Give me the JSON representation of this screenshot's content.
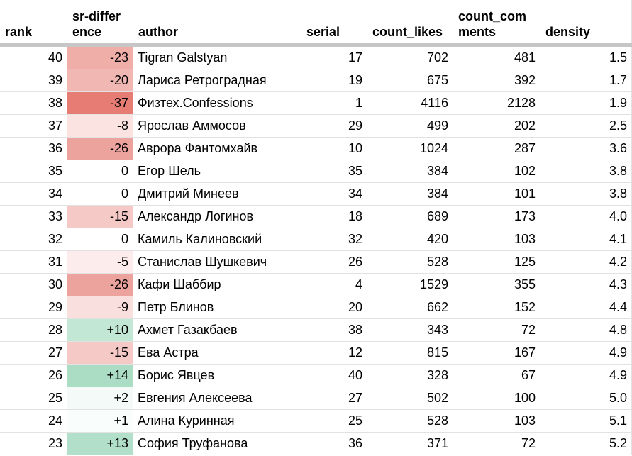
{
  "headers": [
    "rank",
    "sr-difference",
    "author",
    "serial",
    "count_likes",
    "count_comments",
    "density"
  ],
  "header_lines": {
    "rank": [
      "rank"
    ],
    "sr-difference": [
      "sr-differ",
      "ence"
    ],
    "author": [
      "author"
    ],
    "serial": [
      "serial"
    ],
    "count_likes": [
      "count_likes"
    ],
    "count_comments": [
      "count_com",
      "ments"
    ],
    "density": [
      "density"
    ]
  },
  "colors": {
    "negative_strong": "#e67c73",
    "positive_strong": "#57bb8a",
    "neutral": "#ffffff",
    "grid": "#e2e2e2",
    "freeze_bar": "#c6c6c6"
  },
  "rows": [
    {
      "rank": "40",
      "sr_difference": "-23",
      "sr_value": -23,
      "author": "Tigran Galstyan",
      "serial": "17",
      "count_likes": "702",
      "count_comments": "481",
      "density": "1.5"
    },
    {
      "rank": "39",
      "sr_difference": "-20",
      "sr_value": -20,
      "author": "Лариса Ретроградная",
      "serial": "19",
      "count_likes": "675",
      "count_comments": "392",
      "density": "1.7"
    },
    {
      "rank": "38",
      "sr_difference": "-37",
      "sr_value": -37,
      "author": "Физтех.Confessions",
      "serial": "1",
      "count_likes": "4116",
      "count_comments": "2128",
      "density": "1.9"
    },
    {
      "rank": "37",
      "sr_difference": "-8",
      "sr_value": -8,
      "author": "Ярослав Аммосов",
      "serial": "29",
      "count_likes": "499",
      "count_comments": "202",
      "density": "2.5"
    },
    {
      "rank": "36",
      "sr_difference": "-26",
      "sr_value": -26,
      "author": "Аврора Фантомхайв",
      "serial": "10",
      "count_likes": "1024",
      "count_comments": "287",
      "density": "3.6"
    },
    {
      "rank": "35",
      "sr_difference": "0",
      "sr_value": 0,
      "author": "Егор Шель",
      "serial": "35",
      "count_likes": "384",
      "count_comments": "102",
      "density": "3.8"
    },
    {
      "rank": "34",
      "sr_difference": "0",
      "sr_value": 0,
      "author": "Дмитрий Минеев",
      "serial": "34",
      "count_likes": "384",
      "count_comments": "101",
      "density": "3.8"
    },
    {
      "rank": "33",
      "sr_difference": "-15",
      "sr_value": -15,
      "author": "Александр Логинов",
      "serial": "18",
      "count_likes": "689",
      "count_comments": "173",
      "density": "4.0"
    },
    {
      "rank": "32",
      "sr_difference": "0",
      "sr_value": 0,
      "author": "Камиль Калиновский",
      "serial": "32",
      "count_likes": "420",
      "count_comments": "103",
      "density": "4.1"
    },
    {
      "rank": "31",
      "sr_difference": "-5",
      "sr_value": -5,
      "author": "Станислав Шушкевич",
      "serial": "26",
      "count_likes": "528",
      "count_comments": "125",
      "density": "4.2"
    },
    {
      "rank": "30",
      "sr_difference": "-26",
      "sr_value": -26,
      "author": "Кафи Шаббир",
      "serial": "4",
      "count_likes": "1529",
      "count_comments": "355",
      "density": "4.3"
    },
    {
      "rank": "29",
      "sr_difference": "-9",
      "sr_value": -9,
      "author": "Петр Блинов",
      "serial": "20",
      "count_likes": "662",
      "count_comments": "152",
      "density": "4.4"
    },
    {
      "rank": "28",
      "sr_difference": "+10",
      "sr_value": 10,
      "author": "Ахмет Газакбаев",
      "serial": "38",
      "count_likes": "343",
      "count_comments": "72",
      "density": "4.8"
    },
    {
      "rank": "27",
      "sr_difference": "-15",
      "sr_value": -15,
      "author": "Ева Астра",
      "serial": "12",
      "count_likes": "815",
      "count_comments": "167",
      "density": "4.9"
    },
    {
      "rank": "26",
      "sr_difference": "+14",
      "sr_value": 14,
      "author": "Борис Явцев",
      "serial": "40",
      "count_likes": "328",
      "count_comments": "67",
      "density": "4.9"
    },
    {
      "rank": "25",
      "sr_difference": "+2",
      "sr_value": 2,
      "author": "Евгения Алексеева",
      "serial": "27",
      "count_likes": "502",
      "count_comments": "100",
      "density": "5.0"
    },
    {
      "rank": "24",
      "sr_difference": "+1",
      "sr_value": 1,
      "author": "Алина Куринная",
      "serial": "25",
      "count_likes": "528",
      "count_comments": "103",
      "density": "5.1"
    },
    {
      "rank": "23",
      "sr_difference": "+13",
      "sr_value": 13,
      "author": "София Труфанова",
      "serial": "36",
      "count_likes": "371",
      "count_comments": "72",
      "density": "5.2"
    }
  ]
}
